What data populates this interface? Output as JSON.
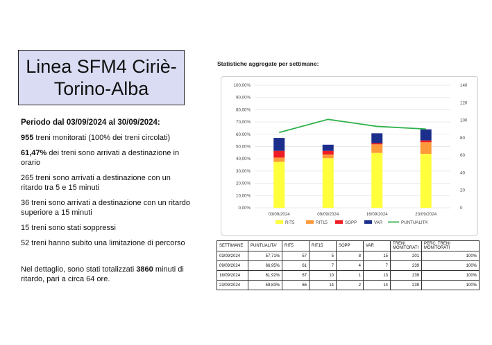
{
  "title": "Linea SFM4 Ciriè-Torino-Alba",
  "summary": {
    "period": "Periodo dal 03/09/2024 al 30/09/2024:",
    "monitored_strong": "955",
    "monitored_rest": " treni monitorati (100% dei treni circolati)",
    "ontime_strong": "61,47%",
    "ontime_rest": " dei treni sono arrivati a destinazione in orario",
    "late_5_15": "265 treni sono arrivati a destinazione con un ritardo tra 5 e 15 minuti",
    "late_over15": "36 treni sono arrivati a destinazione con un ritardo superiore a 15 minuti",
    "suppressed": "15 treni sono stati soppressi",
    "limited": "52 treni hanno subito una limitazione di percorso",
    "detail_pre": "Nel dettaglio, sono stati totalizzati ",
    "detail_strong": "3860",
    "detail_post": " minuti di ritardo, pari a circa 64 ore."
  },
  "chart_heading": "Statistiche aggregate per settimane:",
  "chart_data": {
    "type": "bar",
    "stacked": true,
    "categories": [
      "03/09/2024",
      "09/09/2024",
      "16/09/2024",
      "23/09/2024"
    ],
    "series": [
      {
        "name": "RIT5",
        "values": [
          37.5,
          40.5,
          44.8,
          44.0
        ],
        "color": "#ffff3c"
      },
      {
        "name": "RIT15",
        "values": [
          3.5,
          3.0,
          7.0,
          9.5
        ],
        "color": "#ff9a3a"
      },
      {
        "name": "SOPP",
        "values": [
          5.5,
          3.0,
          1.0,
          1.5
        ],
        "color": "#ee1c25"
      },
      {
        "name": "VAR",
        "values": [
          10.5,
          5.0,
          8.0,
          9.0
        ],
        "color": "#1c2e8c"
      }
    ],
    "line": {
      "name": "PUNTUALITA'",
      "values": [
        86,
        101,
        93,
        90
      ],
      "color": "#2eb24b"
    },
    "y_left": {
      "min": 0,
      "max": 100,
      "ticks": [
        "0,00%",
        "10,00%",
        "20,00%",
        "30,00%",
        "40,00%",
        "50,00%",
        "60,00%",
        "70,00%",
        "80,00%",
        "90,00%",
        "100,00%"
      ]
    },
    "y_right": {
      "min": 0,
      "max": 140,
      "ticks": [
        "0",
        "20",
        "40",
        "60",
        "80",
        "100",
        "120",
        "140"
      ]
    },
    "legend_position": "bottom",
    "grid": true
  },
  "table": {
    "headers": [
      "SETTIMANE",
      "PUNTUALITA'",
      "RIT5",
      "RIT15",
      "SOPP",
      "VAR",
      "TRENI MONITORATI",
      "PERC. TRENI MONITORATI"
    ],
    "rows": [
      [
        "03/09/2024",
        "57,71%",
        "57",
        "5",
        "8",
        "15",
        "201",
        "100%"
      ],
      [
        "09/09/2024",
        "66,95%",
        "61",
        "7",
        "4",
        "7",
        "239",
        "100%"
      ],
      [
        "16/09/2024",
        "61,92%",
        "67",
        "10",
        "1",
        "13",
        "239",
        "100%"
      ],
      [
        "23/09/2024",
        "59,83%",
        "66",
        "14",
        "2",
        "14",
        "239",
        "100%"
      ]
    ]
  }
}
